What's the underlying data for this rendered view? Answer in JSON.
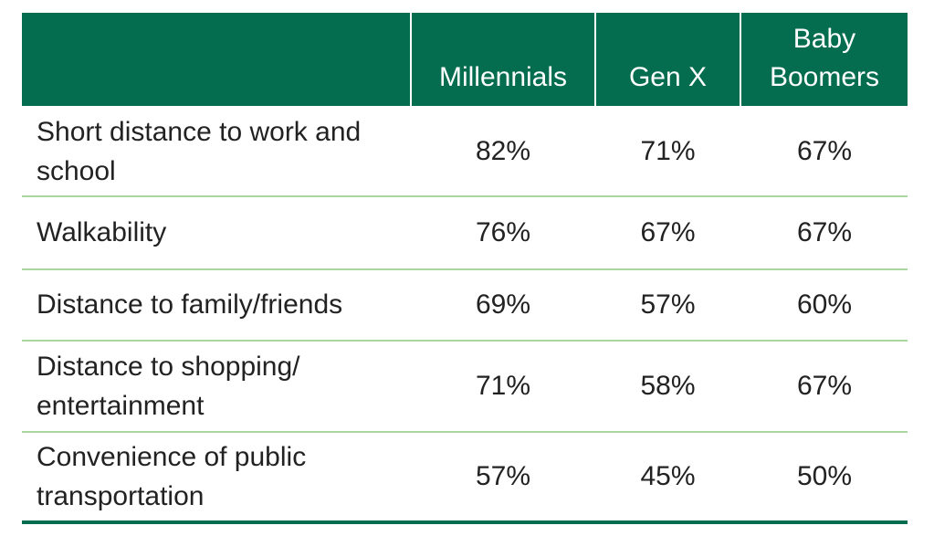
{
  "chart_data": {
    "type": "table",
    "columns": [
      "",
      "Millennials",
      "Gen X",
      "Baby Boomers"
    ],
    "rows": [
      {
        "label": "Short distance to work and school",
        "values": [
          "82%",
          "71%",
          "67%"
        ]
      },
      {
        "label": "Walkability",
        "values": [
          "76%",
          "67%",
          "67%"
        ]
      },
      {
        "label": "Distance to family/friends",
        "values": [
          "69%",
          "57%",
          "60%"
        ]
      },
      {
        "label": "Distance to shopping/ entertainment",
        "values": [
          "71%",
          "58%",
          "67%"
        ]
      },
      {
        "label": "Convenience of public transportation",
        "values": [
          "57%",
          "45%",
          "50%"
        ]
      }
    ]
  },
  "colors": {
    "header_bg": "#056d4f",
    "header_text": "#ffffff",
    "divider": "#a8d8a0",
    "bottom_rule": "#056d4f"
  }
}
